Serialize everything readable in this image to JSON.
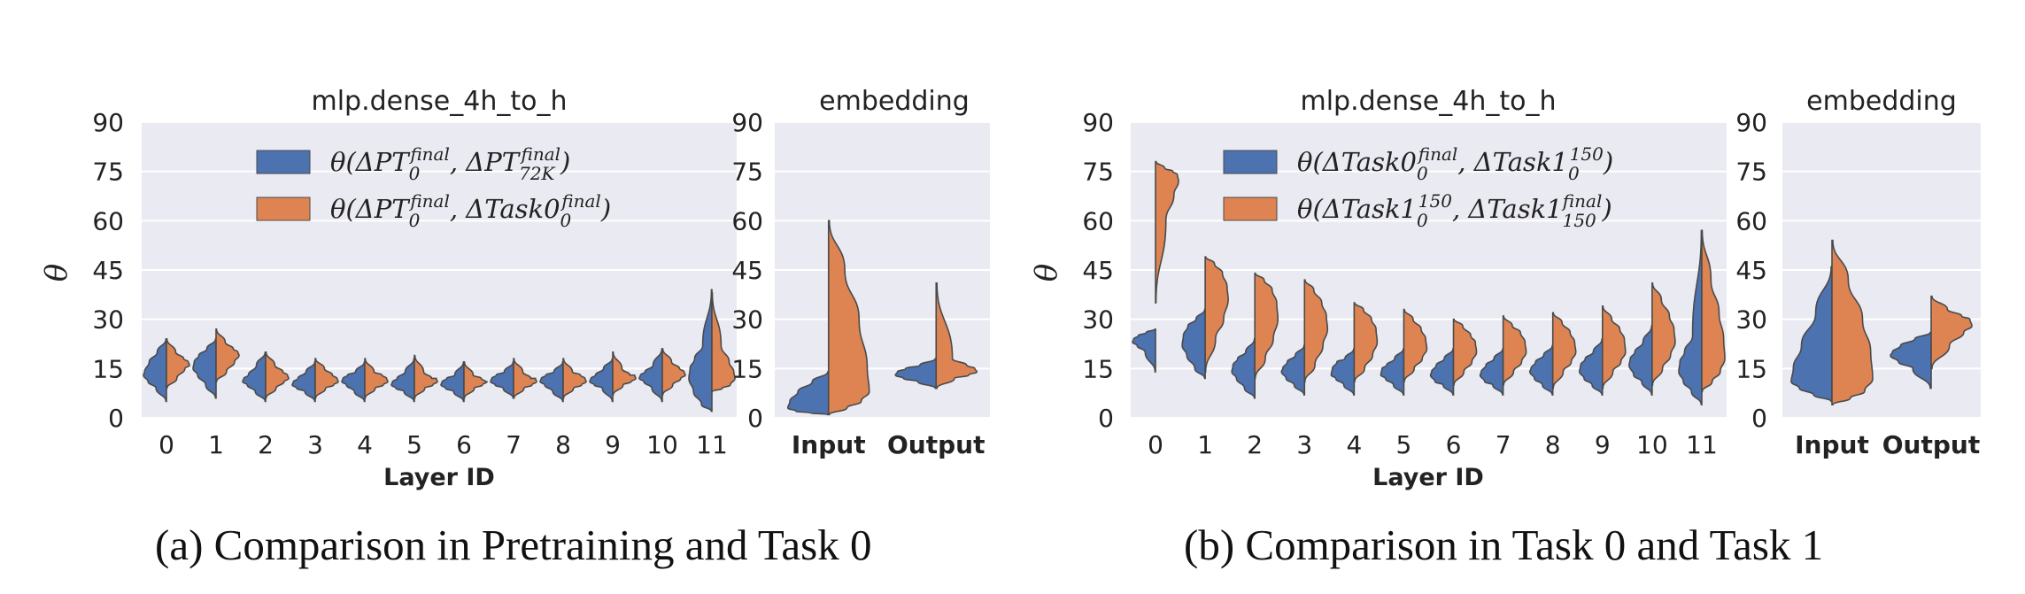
{
  "colors": {
    "blue": "#4c72b0",
    "orange": "#dd8452",
    "panel_bg": "#eaeaf2",
    "grid": "#ffffff",
    "outline": "#4a4a4a"
  },
  "captions": {
    "a": "(a) Comparison in Pretraining and Task 0",
    "b": "(b) Comparison in Task 0 and Task 1"
  },
  "chart_data": [
    {
      "id": "a-left",
      "type": "violin",
      "title": "mlp.dense_4h_to_h",
      "xlabel": "Layer ID",
      "ylabel": "θ",
      "ylim": [
        0,
        90
      ],
      "yticks": [
        0,
        15,
        30,
        45,
        60,
        75,
        90
      ],
      "grid": true,
      "legend_position": "top-center",
      "categories": [
        "0",
        "1",
        "2",
        "3",
        "4",
        "5",
        "6",
        "7",
        "8",
        "9",
        "10",
        "11"
      ],
      "series": [
        {
          "name": "θ(ΔPT₀^final, ΔPT₇₂K^final)",
          "color": "blue",
          "values": [
            [
              5,
              9,
              11,
              13,
              14,
              17,
              20,
              24
            ],
            [
              6,
              10,
              13,
              15,
              17,
              19,
              21,
              24
            ],
            [
              5,
              8,
              10,
              11,
              12,
              13,
              16,
              20
            ],
            [
              5,
              8,
              9,
              10,
              11,
              12,
              14,
              17
            ],
            [
              5,
              8,
              10,
              11,
              12,
              13,
              14,
              17
            ],
            [
              5,
              8,
              9,
              10,
              11,
              12,
              14,
              18
            ],
            [
              5,
              8,
              9,
              10,
              11,
              12,
              13,
              17
            ],
            [
              6,
              9,
              10,
              11,
              12,
              13,
              14,
              17
            ],
            [
              5,
              8,
              10,
              11,
              12,
              13,
              14,
              17
            ],
            [
              5,
              9,
              10,
              11,
              12,
              13,
              15,
              18
            ],
            [
              5,
              9,
              11,
              12,
              13,
              14,
              16,
              21
            ],
            [
              2,
              4,
              8,
              12,
              15,
              18,
              22,
              39
            ]
          ]
        },
        {
          "name": "θ(ΔPT₀^final, ΔTask0₀^final)",
          "color": "orange",
          "values": [
            [
              9,
              12,
              15,
              16,
              17,
              18,
              20,
              24
            ],
            [
              11,
              14,
              17,
              19,
              20,
              21,
              23,
              27
            ],
            [
              6,
              9,
              11,
              12,
              13,
              14,
              16,
              20
            ],
            [
              6,
              9,
              10,
              11,
              12,
              13,
              15,
              18
            ],
            [
              6,
              9,
              10,
              11,
              12,
              13,
              14,
              18
            ],
            [
              6,
              9,
              10,
              11,
              12,
              12,
              14,
              19
            ],
            [
              6,
              9,
              10,
              11,
              11,
              12,
              13,
              17
            ],
            [
              6,
              9,
              10,
              11,
              12,
              12,
              14,
              18
            ],
            [
              6,
              9,
              10,
              11,
              12,
              13,
              14,
              18
            ],
            [
              7,
              10,
              11,
              12,
              13,
              13,
              15,
              20
            ],
            [
              7,
              10,
              12,
              13,
              14,
              15,
              17,
              21
            ],
            [
              8,
              9,
              10,
              12,
              14,
              17,
              22,
              38
            ]
          ]
        }
      ]
    },
    {
      "id": "a-right",
      "type": "violin",
      "title": "embedding",
      "xlabel": "",
      "ylabel": "",
      "ylim": [
        0,
        90
      ],
      "yticks": [
        0,
        15,
        30,
        45,
        60,
        75,
        90
      ],
      "grid": true,
      "categories": [
        "Input",
        "Output"
      ],
      "series": [
        {
          "name": "θ(ΔPT₀^final, ΔPT₇₂K^final)",
          "color": "blue",
          "values": [
            [
              1,
              1.5,
              2,
              3,
              5,
              8,
              11,
              14
            ],
            [
              9,
              11,
              12,
              13,
              14,
              15,
              16,
              18
            ]
          ]
        },
        {
          "name": "θ(ΔPT₀^final, ΔTask0₀^final)",
          "color": "orange",
          "values": [
            [
              1,
              3,
              5,
              8,
              15,
              30,
              45,
              60
            ],
            [
              9,
              12,
              13,
              14,
              15,
              16,
              18,
              41
            ]
          ]
        }
      ]
    },
    {
      "id": "b-left",
      "type": "violin",
      "title": "mlp.dense_4h_to_h",
      "xlabel": "Layer ID",
      "ylabel": "θ",
      "ylim": [
        0,
        90
      ],
      "yticks": [
        0,
        15,
        30,
        45,
        60,
        75,
        90
      ],
      "grid": true,
      "legend_position": "top-center",
      "categories": [
        "0",
        "1",
        "2",
        "3",
        "4",
        "5",
        "6",
        "7",
        "8",
        "9",
        "10",
        "11"
      ],
      "series": [
        {
          "name": "θ(ΔTask0₀^final, ΔTask1₀^150)",
          "color": "blue",
          "values": [
            [
              14,
              20,
              22,
              23,
              24,
              25,
              26,
              27
            ],
            [
              12,
              15,
              19,
              22,
              25,
              28,
              30,
              33
            ],
            [
              6,
              9,
              12,
              14,
              16,
              18,
              20,
              24
            ],
            [
              7,
              10,
              12,
              14,
              15,
              17,
              19,
              22
            ],
            [
              7,
              10,
              12,
              13,
              15,
              17,
              18,
              21
            ],
            [
              7,
              10,
              12,
              13,
              15,
              16,
              18,
              21
            ],
            [
              7,
              10,
              11,
              13,
              14,
              16,
              18,
              21
            ],
            [
              7,
              10,
              11,
              13,
              14,
              16,
              18,
              21
            ],
            [
              7,
              10,
              12,
              14,
              15,
              17,
              19,
              22
            ],
            [
              7,
              10,
              12,
              14,
              16,
              18,
              20,
              24
            ],
            [
              7,
              11,
              13,
              16,
              18,
              20,
              23,
              28
            ],
            [
              4,
              8,
              11,
              14,
              17,
              20,
              25,
              57
            ]
          ]
        },
        {
          "name": "θ(ΔTask1₀^150, ΔTask1₁₅₀^final)",
          "color": "orange",
          "values": [
            [
              35,
              60,
              68,
              72,
              74,
              75,
              76,
              78
            ],
            [
              14,
              24,
              30,
              36,
              40,
              44,
              47,
              49
            ],
            [
              12,
              18,
              24,
              30,
              35,
              39,
              42,
              44
            ],
            [
              11,
              16,
              22,
              27,
              31,
              35,
              39,
              42
            ],
            [
              11,
              15,
              19,
              23,
              27,
              30,
              33,
              35
            ],
            [
              11,
              15,
              18,
              21,
              24,
              27,
              30,
              33
            ],
            [
              10,
              14,
              17,
              20,
              23,
              25,
              28,
              30
            ],
            [
              10,
              14,
              17,
              20,
              23,
              26,
              28,
              31
            ],
            [
              9,
              14,
              17,
              20,
              23,
              26,
              29,
              32
            ],
            [
              9,
              14,
              17,
              20,
              24,
              27,
              30,
              34
            ],
            [
              10,
              15,
              19,
              23,
              27,
              31,
              36,
              41
            ],
            [
              8,
              11,
              14,
              18,
              24,
              32,
              42,
              57
            ]
          ]
        }
      ]
    },
    {
      "id": "b-right",
      "type": "violin",
      "title": "embedding",
      "xlabel": "",
      "ylabel": "",
      "ylim": [
        0,
        90
      ],
      "yticks": [
        0,
        15,
        30,
        45,
        60,
        75,
        90
      ],
      "grid": true,
      "categories": [
        "Input",
        "Output"
      ],
      "series": [
        {
          "name": "θ(ΔTask0₀^final, ΔTask1₀^150)",
          "color": "blue",
          "values": [
            [
              5,
              7,
              9,
              11,
              15,
              22,
              32,
              46
            ],
            [
              9,
              15,
              17,
              19,
              20,
              22,
              24,
              26
            ]
          ]
        },
        {
          "name": "θ(ΔTask1₀^150, ΔTask1₁₅₀^final)",
          "color": "orange",
          "values": [
            [
              4,
              6,
              8,
              12,
              20,
              30,
              42,
              54
            ],
            [
              15,
              22,
              26,
              28,
              30,
              31,
              33,
              37
            ]
          ]
        }
      ]
    }
  ]
}
